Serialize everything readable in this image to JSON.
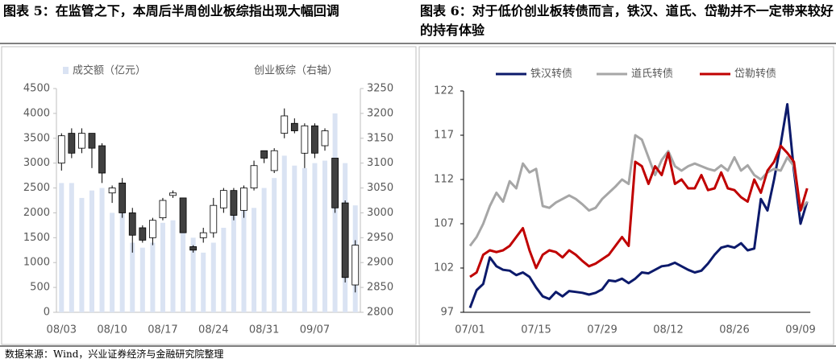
{
  "source": "数据来源：Wind，兴业证券经济与金融研究院整理",
  "chart_data": [
    {
      "type": "bar",
      "title": "图表 5：在监管之下，本周后半周创业板综指出现大幅回调",
      "categories": [
        "08/03",
        null,
        null,
        null,
        null,
        "08/10",
        null,
        null,
        null,
        null,
        "08/17",
        null,
        null,
        null,
        null,
        "08/24",
        null,
        null,
        null,
        null,
        "08/31",
        null,
        null,
        null,
        null,
        "09/07",
        null,
        null,
        null,
        null
      ],
      "ylim": [
        0,
        4500
      ],
      "yticks": [
        0,
        500,
        1000,
        1500,
        2000,
        2500,
        3000,
        3500,
        4000,
        4500
      ],
      "y2lim": [
        2800,
        3250
      ],
      "y2ticks": [
        2800,
        2850,
        2900,
        2950,
        3000,
        3050,
        3100,
        3150,
        3200,
        3250
      ],
      "series": [
        {
          "name": "成交额（亿元）",
          "type": "bar",
          "color": "#dae3f3",
          "values": [
            2600,
            2600,
            2300,
            2450,
            2500,
            2000,
            2000,
            1400,
            1300,
            1400,
            1800,
            1850,
            1850,
            1500,
            1200,
            1400,
            1700,
            2300,
            2100,
            2100,
            2500,
            2700,
            3150,
            2950,
            2900,
            3000,
            3050,
            4000,
            3000,
            2150
          ]
        },
        {
          "name": "创业板综（右轴）",
          "type": "candlestick",
          "axis": "y2",
          "color": "#404040",
          "open": [
            3100,
            3160,
            3130,
            3160,
            3135,
            3040,
            3060,
            3000,
            2970,
            2950,
            2990,
            3035,
            3030,
            2932,
            2950,
            2960,
            3010,
            3045,
            3005,
            3050,
            3125,
            3085,
            3160,
            3180,
            3120,
            3175,
            3135,
            3110,
            3020,
            2855
          ],
          "high": [
            3160,
            3170,
            3170,
            3160,
            3140,
            3055,
            3070,
            3010,
            2975,
            2990,
            3030,
            3045,
            3030,
            2935,
            2970,
            3030,
            3050,
            3050,
            3055,
            3105,
            3125,
            3130,
            3210,
            3190,
            3180,
            3180,
            3170,
            3110,
            3025,
            2945
          ],
          "low": [
            3085,
            3110,
            3120,
            3090,
            3060,
            3020,
            2990,
            2920,
            2940,
            2935,
            2985,
            3030,
            2960,
            2920,
            2940,
            2950,
            3000,
            2985,
            2990,
            3045,
            3100,
            3080,
            3150,
            3160,
            3090,
            3110,
            3125,
            3000,
            2860,
            2840
          ],
          "close": [
            3155,
            3120,
            3160,
            3130,
            3080,
            3050,
            3000,
            2955,
            2945,
            2985,
            3025,
            3040,
            2960,
            2925,
            2960,
            3015,
            3045,
            2995,
            3050,
            3095,
            3110,
            3125,
            3195,
            3165,
            3175,
            3120,
            3165,
            3010,
            2870,
            2935
          ]
        }
      ]
    },
    {
      "type": "line",
      "title": "图表 6：对于低价创业板转债而言，铁汉、道氏、岱勒并不一定带来较好的持有体验",
      "categories": [
        "07/01",
        null,
        null,
        null,
        null,
        null,
        null,
        null,
        null,
        null,
        "07/15",
        null,
        null,
        null,
        null,
        null,
        null,
        null,
        null,
        null,
        "07/29",
        null,
        null,
        null,
        null,
        null,
        null,
        null,
        null,
        null,
        "08/12",
        null,
        null,
        null,
        null,
        null,
        null,
        null,
        null,
        null,
        "08/26",
        null,
        null,
        null,
        null,
        null,
        null,
        null,
        null,
        null,
        "09/09",
        null
      ],
      "ylim": [
        97,
        122
      ],
      "yticks": [
        97,
        102,
        107,
        112,
        117,
        122
      ],
      "legend": "top",
      "series": [
        {
          "name": "铁汉转债",
          "color": "#0c1a6b",
          "values": [
            97.5,
            99.5,
            100.2,
            103.2,
            102.2,
            101.8,
            101.7,
            101.2,
            101.5,
            101,
            99.8,
            98.8,
            98.5,
            99.3,
            98.8,
            99.4,
            99.3,
            99.2,
            99,
            99.2,
            99.6,
            100.6,
            100.5,
            100.8,
            100.3,
            100.8,
            101.5,
            101.4,
            101.8,
            102.2,
            102.3,
            102.6,
            102.2,
            101.8,
            101.5,
            101.7,
            102.5,
            103.5,
            104.3,
            104.5,
            104.3,
            104.8,
            104,
            104.2,
            109.8,
            108.5,
            112,
            116,
            120.5,
            113,
            107,
            109.5
          ]
        },
        {
          "name": "道氏转债",
          "color": "#a6a6a6",
          "values": [
            104.5,
            105.5,
            107,
            109,
            110.5,
            109.5,
            111.8,
            111,
            113.8,
            112.8,
            113.2,
            109,
            108.8,
            109.4,
            109.8,
            110.2,
            109.8,
            109.2,
            108.5,
            108.8,
            109.8,
            110.5,
            111.2,
            112,
            111.5,
            117,
            116.5,
            114.5,
            112.5,
            114.2,
            115.2,
            113.5,
            113,
            113.5,
            113.8,
            113.5,
            113.2,
            113,
            113.6,
            113,
            114.5,
            113,
            113.6,
            112.5,
            112,
            112.8,
            113.2,
            113,
            114.5,
            113.5,
            108.5,
            109.5
          ]
        },
        {
          "name": "岱勒转债",
          "color": "#c00000",
          "values": [
            101,
            101.5,
            103.5,
            104,
            103.8,
            104,
            104.5,
            105.5,
            106.5,
            104,
            102,
            103.5,
            104,
            103.8,
            103.2,
            104,
            103.5,
            102.8,
            102.2,
            102.5,
            103,
            103.5,
            104.5,
            105.5,
            104.5,
            114,
            113.5,
            111.5,
            113.5,
            112.5,
            115,
            111.5,
            112,
            111,
            111,
            112.5,
            110.8,
            111,
            112.8,
            111,
            110.8,
            110,
            109.5,
            112,
            110.5,
            113,
            114,
            115.8,
            115,
            114,
            108.5,
            111
          ]
        }
      ]
    }
  ]
}
